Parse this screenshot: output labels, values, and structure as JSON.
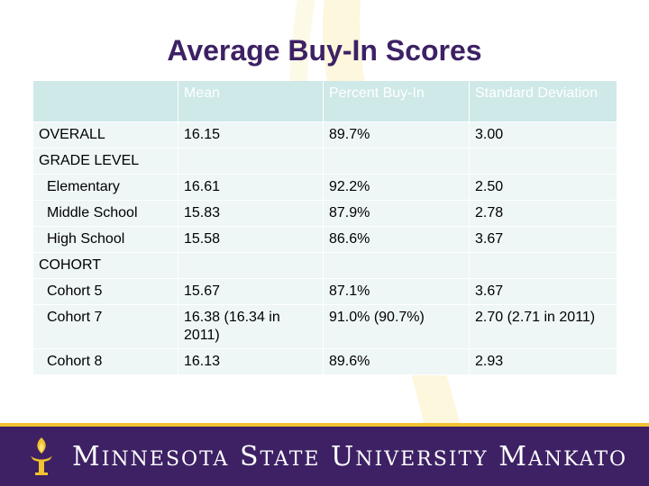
{
  "slide": {
    "title": "Average Buy-In Scores"
  },
  "table": {
    "headers": [
      "",
      "Mean",
      "Percent Buy-In",
      "Standard Deviation"
    ],
    "rows": [
      {
        "label": "OVERALL",
        "mean": "16.15",
        "percent": "89.7%",
        "sd": "3.00"
      },
      {
        "label": "GRADE LEVEL",
        "mean": "",
        "percent": "",
        "sd": ""
      },
      {
        "label": "Elementary",
        "mean": "16.61",
        "percent": "92.2%",
        "sd": "2.50"
      },
      {
        "label": "Middle School",
        "mean": "15.83",
        "percent": "87.9%",
        "sd": "2.78"
      },
      {
        "label": "High School",
        "mean": "15.58",
        "percent": "86.6%",
        "sd": "3.67"
      },
      {
        "label": "COHORT",
        "mean": "",
        "percent": "",
        "sd": ""
      },
      {
        "label": "Cohort 5",
        "mean": "15.67",
        "percent": "87.1%",
        "sd": "3.67"
      },
      {
        "label": "Cohort 7",
        "mean": "16.38 (16.34 in 2011)",
        "percent": "91.0% (90.7%)",
        "sd": "2.70  (2.71 in 2011)"
      },
      {
        "label": "Cohort 8",
        "mean": "16.13",
        "percent": "89.6%",
        "sd": "2.93"
      }
    ]
  },
  "footer": {
    "word1_cap": "M",
    "word1_rest": "INNESOTA",
    "word2_cap": "S",
    "word2_rest": "TATE",
    "word3_cap": "U",
    "word3_rest": "NIVERSITY",
    "word4_cap": "M",
    "word4_rest": "ANKATO",
    "logo_icon": "torch-icon"
  },
  "colors": {
    "title": "#3d2164",
    "header_fill": "#cfe8e8",
    "row_fill": "#eef6f6",
    "footer_band": "#3d2164",
    "accent_gold": "#f2c230"
  }
}
